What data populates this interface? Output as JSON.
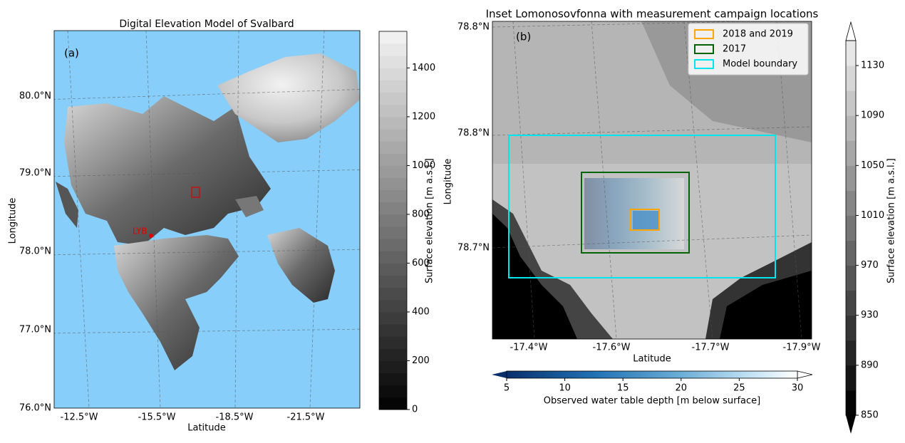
{
  "panel_a": {
    "title": "Digital Elevation Model of Svalbard",
    "label": "(a)",
    "xlabel": "Latitude",
    "ylabel": "Longitude",
    "xticks": [
      "-12.5°W",
      "-15.5°W",
      "-18.5°W",
      "-21.5°W"
    ],
    "yticks": [
      "76.0°N",
      "77.0°N",
      "78.0°N",
      "79.0°N",
      "80.0°N"
    ],
    "marker_label": "LYB",
    "colorbar": {
      "label": "Surface elevation [m a.s.l.]",
      "lim": [
        0,
        1550
      ],
      "ticks": [
        0,
        200,
        400,
        600,
        800,
        1000,
        1200,
        1400
      ]
    }
  },
  "panel_b": {
    "title": "Inset Lomonosovfonna with measurement campaign locations",
    "label": "(b)",
    "xlabel": "Latitude",
    "ylabel": "Longitude",
    "xticks": [
      "-17.4°W",
      "-17.6°W",
      "-17.7°W",
      "-17.9°W"
    ],
    "yticks": [
      "78.8°N",
      "78.8°N",
      "78.7°N"
    ],
    "legend": [
      {
        "name": "2018 and 2019",
        "color": "#ffa500"
      },
      {
        "name": "2017",
        "color": "#006400"
      },
      {
        "name": "Model boundary",
        "color": "#00e5ee"
      }
    ],
    "colorbar": {
      "label": "Surface elevation [m a.s.l.]",
      "lim": [
        850,
        1150
      ],
      "ticks": [
        850,
        890,
        930,
        970,
        1010,
        1050,
        1090,
        1130
      ]
    },
    "depth_colorbar": {
      "label": "Observed water table depth [m below surface]",
      "lim": [
        5,
        30
      ],
      "ticks": [
        5,
        10,
        15,
        20,
        25,
        30
      ]
    }
  }
}
